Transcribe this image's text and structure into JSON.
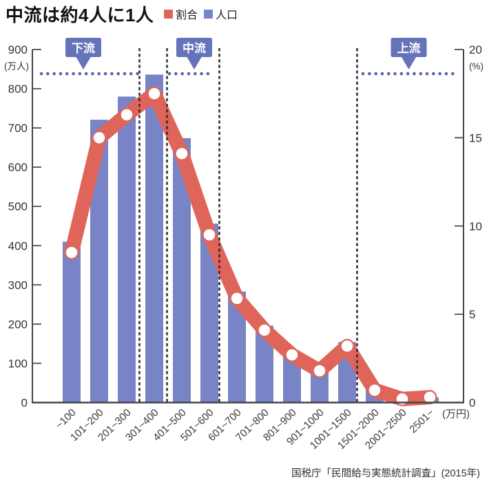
{
  "title": "中流は約4人に1人",
  "legend": {
    "items": [
      {
        "label": "割合",
        "color": "#df655a"
      },
      {
        "label": "人口",
        "color": "#7884c6"
      }
    ]
  },
  "source_note": "国税庁「民間給与実態統計調査」(2015年)",
  "chart_data": {
    "type": "bar",
    "title": "中流は約4人に1人",
    "categories": [
      "~100",
      "101~200",
      "201~300",
      "301~400",
      "401~500",
      "501~600",
      "601~700",
      "701~800",
      "801~900",
      "901~1000",
      "1001~1500",
      "1501~2000",
      "2001~2500",
      "2501~"
    ],
    "series": [
      {
        "name": "人口",
        "type": "bar",
        "axis": "left",
        "unit": "万人",
        "color": "#7884c6",
        "values": [
          410,
          721,
          780,
          836,
          674,
          456,
          283,
          196,
          130,
          87,
          154,
          34,
          11,
          13
        ]
      },
      {
        "name": "割合",
        "type": "line",
        "axis": "right",
        "unit": "%",
        "color": "#df655a",
        "values": [
          8.5,
          15.0,
          16.3,
          17.5,
          14.1,
          9.5,
          5.9,
          4.1,
          2.7,
          1.8,
          3.2,
          0.7,
          0.2,
          0.3
        ]
      }
    ],
    "left_axis": {
      "unit_label": "(万人)",
      "min": 0,
      "max": 900,
      "tick_step": 100
    },
    "right_axis": {
      "unit_label": "(%)",
      "min": 0,
      "max": 20,
      "tick_step": 5
    },
    "x_axis_unit_label": "(万円)",
    "peak_reference_level": 836,
    "class_annotations": [
      {
        "label": "下流",
        "categories": [
          "~100",
          "101~200",
          "201~300"
        ]
      },
      {
        "label": "中流",
        "categories": [
          "401~500",
          "501~600"
        ]
      },
      {
        "label": "上流",
        "categories": [
          "1501~2000",
          "2001~2500",
          "2501~"
        ]
      }
    ],
    "grid": false,
    "legend_position": "top",
    "colors": {
      "bar": "#7884c6",
      "line": "#df655a",
      "marker": "#ffffff",
      "annotation_box": "#6573ba",
      "dotted_reference": "#5866ae",
      "axis": "#43444c",
      "text": "#333333"
    }
  }
}
